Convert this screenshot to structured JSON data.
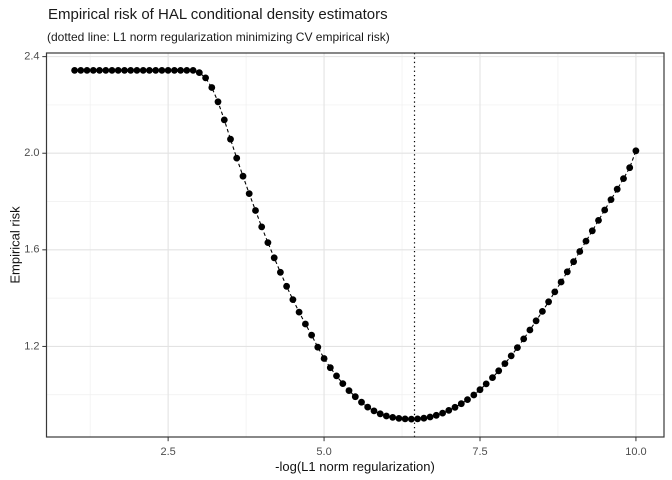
{
  "chart_data": {
    "type": "scatter",
    "title": "Empirical risk of HAL conditional density estimators",
    "subtitle": "(dotted line: L1 norm regularization minimizing CV empirical risk)",
    "xlabel": "-log(L1 norm regularization)",
    "ylabel": "Empirical risk",
    "xlim": [
      0.55,
      10.45
    ],
    "ylim": [
      0.825,
      2.415
    ],
    "x_major_ticks": [
      2.5,
      5.0,
      7.5,
      10.0
    ],
    "x_tick_labels": [
      "2.5",
      "5.0",
      "7.5",
      "10.0"
    ],
    "x_minor_ticks": [
      1.25,
      3.75,
      6.25,
      8.75
    ],
    "y_major_ticks": [
      1.2,
      1.6,
      2.0,
      2.4
    ],
    "y_tick_labels": [
      "1.2",
      "1.6",
      "2.0",
      "2.4"
    ],
    "y_minor_ticks": [
      1.0,
      1.4,
      1.8,
      2.2
    ],
    "vline_x": 6.45,
    "grid": true,
    "legend": "none",
    "x": [
      1.0,
      1.1,
      1.2,
      1.3,
      1.4,
      1.5,
      1.6,
      1.7,
      1.8,
      1.9,
      2.0,
      2.1,
      2.2,
      2.3,
      2.4,
      2.5,
      2.6,
      2.7,
      2.8,
      2.9,
      3.0,
      3.1,
      3.2,
      3.3,
      3.4,
      3.5,
      3.6,
      3.7,
      3.8,
      3.9,
      4.0,
      4.1,
      4.2,
      4.3,
      4.4,
      4.5,
      4.6,
      4.7,
      4.8,
      4.9,
      5.0,
      5.1,
      5.2,
      5.3,
      5.4,
      5.5,
      5.6,
      5.7,
      5.8,
      5.9,
      6.0,
      6.1,
      6.2,
      6.3,
      6.4,
      6.5,
      6.6,
      6.7,
      6.8,
      6.9,
      7.0,
      7.1,
      7.2,
      7.3,
      7.4,
      7.5,
      7.6,
      7.7,
      7.8,
      7.9,
      8.0,
      8.1,
      8.2,
      8.3,
      8.4,
      8.5,
      8.6,
      8.7,
      8.8,
      8.9,
      9.0,
      9.1,
      9.2,
      9.3,
      9.4,
      9.5,
      9.6,
      9.7,
      9.8,
      9.9,
      10.0
    ],
    "y": [
      2.343,
      2.343,
      2.343,
      2.343,
      2.343,
      2.343,
      2.343,
      2.343,
      2.343,
      2.343,
      2.343,
      2.343,
      2.343,
      2.343,
      2.343,
      2.343,
      2.343,
      2.343,
      2.343,
      2.343,
      2.334,
      2.312,
      2.272,
      2.213,
      2.138,
      2.058,
      1.98,
      1.905,
      1.833,
      1.763,
      1.695,
      1.63,
      1.567,
      1.507,
      1.449,
      1.394,
      1.342,
      1.293,
      1.247,
      1.197,
      1.15,
      1.112,
      1.078,
      1.046,
      1.017,
      0.992,
      0.969,
      0.949,
      0.933,
      0.921,
      0.912,
      0.906,
      0.902,
      0.9,
      0.899,
      0.9,
      0.903,
      0.908,
      0.915,
      0.924,
      0.935,
      0.948,
      0.963,
      0.98,
      0.999,
      1.021,
      1.045,
      1.071,
      1.099,
      1.129,
      1.161,
      1.195,
      1.231,
      1.268,
      1.306,
      1.345,
      1.385,
      1.426,
      1.467,
      1.509,
      1.551,
      1.593,
      1.636,
      1.679,
      1.722,
      1.765,
      1.808,
      1.851,
      1.895,
      1.94,
      2.01
    ],
    "colors": {
      "point": "#000000",
      "series_line": "#000000",
      "vline": "#000000",
      "grid_major": "#e3e3e3",
      "grid_minor": "#efefef",
      "panel_border": "#383838",
      "tick_mark": "#333333",
      "tick_label": "#4d4d4d",
      "panel_bg": "#ffffff"
    }
  }
}
